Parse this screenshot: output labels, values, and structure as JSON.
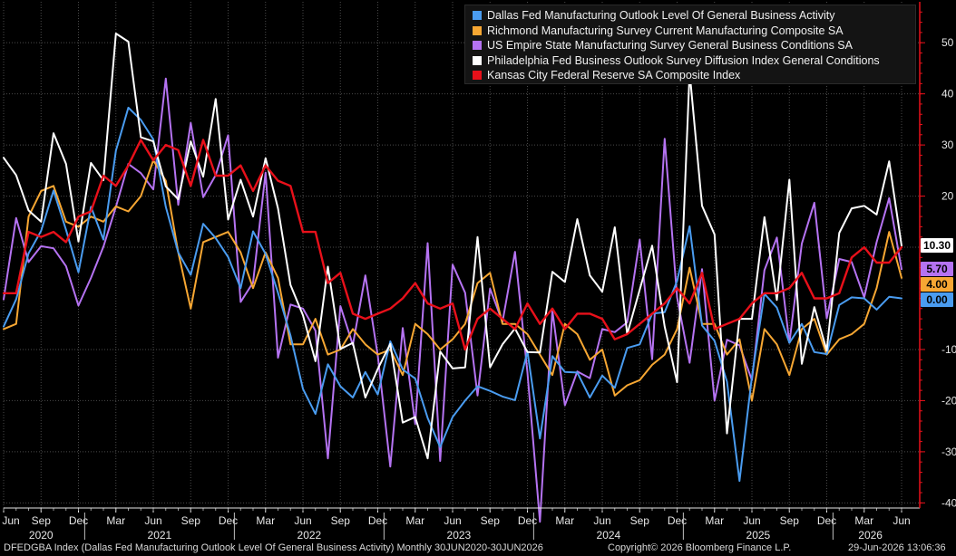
{
  "chart_data": {
    "type": "line",
    "x_dates": [
      "Jun 2020",
      "Jul 2020",
      "Aug 2020",
      "Sep 2020",
      "Oct 2020",
      "Nov 2020",
      "Dec 2020",
      "Jan 2021",
      "Feb 2021",
      "Mar 2021",
      "Apr 2021",
      "May 2021",
      "Jun 2021",
      "Jul 2021",
      "Aug 2021",
      "Sep 2021",
      "Oct 2021",
      "Nov 2021",
      "Dec 2021",
      "Jan 2022",
      "Feb 2022",
      "Mar 2022",
      "Apr 2022",
      "May 2022",
      "Jun 2022",
      "Jul 2022",
      "Aug 2022",
      "Sep 2022",
      "Oct 2022",
      "Nov 2022",
      "Dec 2022",
      "Jan 2023",
      "Feb 2023",
      "Mar 2023",
      "Apr 2023",
      "May 2023",
      "Jun 2023",
      "Jul 2023",
      "Aug 2023",
      "Sep 2023",
      "Oct 2023",
      "Nov 2023",
      "Dec 2023",
      "Jan 2024",
      "Feb 2024",
      "Mar 2024",
      "Apr 2024",
      "May 2024",
      "Jun 2024",
      "Jul 2024",
      "Aug 2024",
      "Sep 2024",
      "Oct 2024",
      "Nov 2024",
      "Dec 2024",
      "Jan 2025",
      "Feb 2025",
      "Mar 2025",
      "Apr 2025",
      "May 2025",
      "Jun 2025",
      "Jul 2025",
      "Aug 2025",
      "Sep 2025",
      "Oct 2025",
      "Nov 2025",
      "Dec 2025",
      "Jan 2026",
      "Feb 2026",
      "Mar 2026",
      "Apr 2026",
      "May 2026",
      "Jun 2026"
    ],
    "ylim": [
      -41,
      58
    ],
    "yticks": [
      50,
      40,
      30,
      20,
      10,
      -10,
      -20,
      -30,
      -40
    ],
    "x_tick_labels": [
      "Jun",
      "Sep",
      "Dec",
      "Mar",
      "Jun",
      "Sep",
      "Dec",
      "Mar",
      "Jun",
      "Sep",
      "Dec",
      "Mar",
      "Jun",
      "Sep",
      "Dec",
      "Mar",
      "Jun",
      "Sep",
      "Dec",
      "Mar",
      "Jun",
      "Sep",
      "Dec",
      "Mar",
      "Jun"
    ],
    "year_labels": [
      "2020",
      "2021",
      "2022",
      "2023",
      "2024",
      "2025",
      "2026"
    ],
    "grid": true,
    "legend_position": "top-right",
    "series": [
      {
        "name": "Dallas Fed Manufacturing Outlook Level Of General Business Activity",
        "color": "#4a9cf0",
        "last_label": "0.00",
        "values": [
          -5.5,
          -0.2,
          8.8,
          13.2,
          21.1,
          13.4,
          5.1,
          17.9,
          11.5,
          28.9,
          37.3,
          34.9,
          31.1,
          17.9,
          9.0,
          4.6,
          14.6,
          11.8,
          8.1,
          2.0,
          13.1,
          8.7,
          1.1,
          -7.3,
          -17.7,
          -22.6,
          -12.9,
          -17.2,
          -19.4,
          -14.4,
          -18.8,
          -8.4,
          -13.9,
          -15.7,
          -23.4,
          -29.1,
          -23.2,
          -20.0,
          -17.2,
          -18.1,
          -19.2,
          -19.9,
          -10.4,
          -27.4,
          -11.3,
          -14.4,
          -14.5,
          -19.4,
          -15.1,
          -17.5,
          -9.7,
          -9.0,
          -3.0,
          -2.7,
          3.4,
          14.1,
          -5.3,
          -8.3,
          -16.3,
          -35.7,
          -15.3,
          0.9,
          -1.8,
          -8.7,
          -5.0,
          -10.5,
          -10.9,
          -1.3,
          0.2,
          0.0,
          -2.2,
          0.3,
          0.0
        ]
      },
      {
        "name": "Richmond Manufacturing Survey Current Manufacturing Composite SA",
        "color": "#f7a733",
        "last_label": "4.00",
        "values": [
          -6,
          -5,
          16,
          21,
          22,
          15,
          14,
          16,
          15,
          18,
          17,
          20,
          27,
          23,
          9,
          -2,
          11,
          12,
          13,
          9,
          2,
          9,
          4,
          -9,
          -9,
          -4,
          -11,
          -10,
          -6,
          -9,
          -11,
          -10,
          -15,
          -5,
          -7,
          -10,
          -8,
          -5,
          3,
          5,
          -5,
          -5,
          -7,
          -11,
          -15,
          -5,
          -7,
          -12,
          -10,
          -19,
          -17,
          -16,
          -13,
          -11,
          -6,
          6,
          -5,
          -5,
          -11,
          -8,
          -20,
          -6,
          -9,
          -15,
          -6,
          -4,
          -11,
          -8,
          -7,
          -5,
          2,
          13,
          4
        ]
      },
      {
        "name": "US Empire State Manufacturing Survey General Business Conditions SA",
        "color": "#b573f2",
        "last_label": "5.70",
        "values": [
          -0.2,
          15.7,
          7.1,
          10.2,
          9.8,
          6.3,
          -1.4,
          4.0,
          10.1,
          17.9,
          26.3,
          24.5,
          21.3,
          43.0,
          18.3,
          34.3,
          19.8,
          24.1,
          31.9,
          -0.7,
          3.1,
          24.6,
          -11.6,
          -1.2,
          -2.0,
          -6.3,
          -31.3,
          -1.5,
          -9.1,
          4.5,
          -11.2,
          -32.9,
          -5.8,
          -24.6,
          10.8,
          -31.8,
          6.6,
          1.1,
          -19.0,
          1.9,
          -4.6,
          9.1,
          -14.5,
          -43.7,
          -2.4,
          -20.9,
          -14.3,
          -15.6,
          -6.0,
          -6.6,
          -4.7,
          11.5,
          -11.9,
          31.2,
          0.2,
          -12.6,
          5.7,
          -20.0,
          -8.1,
          -9.2,
          -16.0,
          5.5,
          11.9,
          -8.7,
          10.7,
          18.7,
          -3.9,
          7.7,
          7.1,
          0.2,
          11.0,
          19.6,
          5.7
        ]
      },
      {
        "name": "Philadelphia Fed Business Outlook Survey Diffusion Index General Conditions",
        "color": "#ffffff",
        "last_label": "10.30",
        "values": [
          27.5,
          24.1,
          17.2,
          15.0,
          32.3,
          26.3,
          11.1,
          26.5,
          23.1,
          51.8,
          50.2,
          31.5,
          30.7,
          21.9,
          19.4,
          30.7,
          23.8,
          39.0,
          15.4,
          23.2,
          16.0,
          27.4,
          17.6,
          2.6,
          -3.3,
          -12.3,
          6.2,
          -9.9,
          -8.7,
          -19.4,
          -13.8,
          -8.9,
          -24.3,
          -23.2,
          -31.3,
          -10.4,
          -13.7,
          -13.5,
          12.0,
          -13.5,
          -9.0,
          -5.9,
          -10.5,
          -10.6,
          5.2,
          3.2,
          15.5,
          4.5,
          1.3,
          13.9,
          -7.0,
          1.7,
          10.3,
          -5.5,
          -16.4,
          44.3,
          18.1,
          12.5,
          -26.4,
          -4.0,
          -4.0,
          15.9,
          -0.3,
          23.2,
          -12.8,
          -1.7,
          -10.2,
          12.8,
          17.6,
          18.1,
          16.4,
          26.8,
          10.3
        ]
      },
      {
        "name": "Kansas City Federal Reserve SA Composite Index",
        "color": "#e8101a",
        "last_label": "",
        "values": [
          1,
          1,
          13,
          12,
          13,
          11,
          16,
          17,
          24,
          22,
          26,
          31,
          27,
          30,
          29,
          22,
          31,
          24,
          24,
          26,
          21,
          26,
          23,
          22,
          13,
          13,
          3,
          5,
          -3,
          -4,
          -3,
          -2,
          0,
          3,
          -1,
          -2,
          -1,
          -10,
          -4,
          -2,
          -4,
          -6,
          -1,
          -5,
          -2,
          -6,
          -3,
          -3,
          -4,
          -8,
          -7,
          -5,
          -3,
          -1,
          2,
          -1,
          5,
          -6,
          -5,
          -4,
          -1,
          1,
          1,
          2,
          5,
          0,
          0,
          1,
          8,
          10,
          7,
          7,
          10
        ]
      }
    ]
  },
  "axis_badges": [
    {
      "text": "10.30",
      "bg": "#ffffff",
      "fg": "#000000",
      "value": 10.3
    },
    {
      "text": "5.70",
      "bg": "#b573f2",
      "fg": "#000000",
      "value": 5.7
    },
    {
      "text": "4.00",
      "bg": "#f7a733",
      "fg": "#000000",
      "value": 4.0
    },
    {
      "text": "0.00",
      "bg": "#4a9cf0",
      "fg": "#000000",
      "value": 0.0
    }
  ],
  "footer": {
    "left": "DFEDGBA Index (Dallas Fed Manufacturing Outlook Level Of General Business Activity) Monthly 30JUN2020-30JUN2026",
    "copyright": "Copyright© 2026 Bloomberg Finance L.P.",
    "timestamp": "29-Jun-2026 13:06:36"
  },
  "colors": {
    "background": "#000000",
    "grid": "#4a4a4a",
    "axis": "#e8101a"
  }
}
